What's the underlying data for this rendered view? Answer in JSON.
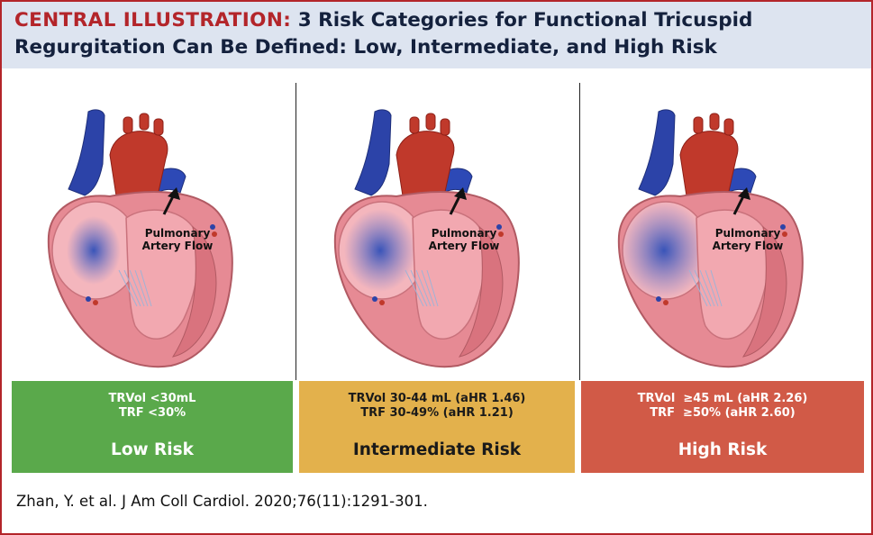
{
  "title": {
    "lead": "CENTRAL ILLUSTRATION:",
    "rest": " 3 Risk Categories for Functional Tricuspid Regurgitation Can Be Defined: Low, Intermediate, and High Risk"
  },
  "flow_label_line1": "Pulmonary",
  "flow_label_line2": "Artery Flow",
  "panels": [
    {
      "criteria_1": "TRVol <30mL",
      "criteria_2": "TRF <30%",
      "risk": "Low Risk",
      "color": "#5aa94b",
      "regurgitation_size": "small"
    },
    {
      "criteria_1": "TRVol 30-44 mL (aHR 1.46)",
      "criteria_2": "TRF 30-49% (aHR 1.21)",
      "risk": "Intermediate Risk",
      "color": "#e3b14c",
      "regurgitation_size": "medium"
    },
    {
      "criteria_1": "TRVol  ≥45 mL (aHR 2.26)",
      "criteria_2": "TRF  ≥50% (aHR 2.60)",
      "risk": "High Risk",
      "color": "#d15a47",
      "regurgitation_size": "large"
    }
  ],
  "citation": "Zhan, Y. et al. J Am Coll Cardiol. 2020;76(11):1291-301.",
  "colors": {
    "accent_red": "#b3252a",
    "navy": "#14213d",
    "header_bg": "#dde4f0"
  }
}
